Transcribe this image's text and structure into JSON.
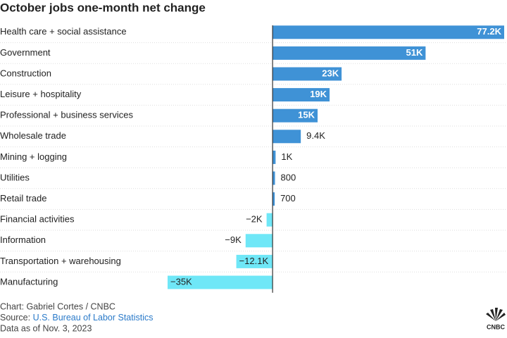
{
  "chart_data": {
    "type": "hbar",
    "title": "October jobs one-month net change",
    "categories": [
      "Health care + social assistance",
      "Government",
      "Construction",
      "Leisure + hospitality",
      "Professional + business services",
      "Wholesale trade",
      "Mining + logging",
      "Utilities",
      "Retail trade",
      "Financial activities",
      "Information",
      "Transportation + warehousing",
      "Manufacturing"
    ],
    "values": [
      77200,
      51000,
      23000,
      19000,
      15000,
      9400,
      1000,
      800,
      700,
      -2000,
      -9000,
      -12100,
      -35000
    ],
    "value_labels": [
      "77.2K",
      "51K",
      "23K",
      "19K",
      "15K",
      "9.4K",
      "1K",
      "800",
      "700",
      "−2K",
      "−9K",
      "−12.1K",
      "−35K"
    ],
    "positive_color": "#3f92d6",
    "negative_color": "#6fe7f7",
    "xlim": [
      -35000,
      77200
    ],
    "credit": "Chart: Gabriel Cortes / CNBC",
    "source_label": "Source:",
    "source": "U.S. Bureau of Labor Statistics",
    "date_note": "Data as of Nov. 3, 2023",
    "logo": "CNBC"
  }
}
